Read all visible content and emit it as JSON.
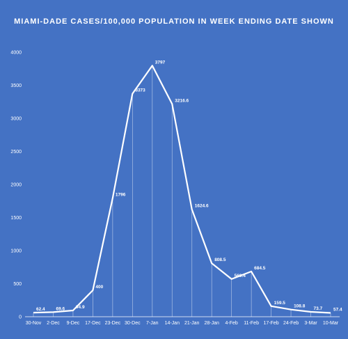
{
  "chart_data": {
    "type": "line",
    "title": "MIAMI-DADE CASES/100,000 POPULATION IN WEEK ENDING DATE SHOWN",
    "xlabel": "",
    "ylabel": "",
    "ylim": [
      0,
      4000
    ],
    "yticks": [
      "0",
      "500",
      "1000",
      "1500",
      "2000",
      "2500",
      "3000",
      "3500",
      "4000"
    ],
    "grid": false,
    "drop_lines": true,
    "categories": [
      "30-Nov",
      "2-Dec",
      "9-Dec",
      "17-Dec",
      "23-Dec",
      "30-Dec",
      "7-Jan",
      "14-Jan",
      "21-Jan",
      "28-Jan",
      "4-Feb",
      "11-Feb",
      "17-Feb",
      "24-Feb",
      "3-Mar",
      "10-Mar"
    ],
    "series": [
      {
        "values": [
          62.4,
          69.6,
          94.9,
          400,
          1796,
          3373,
          3797,
          3216.6,
          1624.6,
          808.5,
          569.4,
          684.5,
          159.5,
          108.8,
          73.7,
          57.4
        ],
        "labels": [
          "62.4",
          "69.6",
          "94.9",
          "400",
          "1796",
          "3373",
          "3797",
          "3216.6",
          "1624.6",
          "808.5",
          "569.4",
          "684.5",
          "159.5",
          "108.8",
          "73.7",
          "57.4"
        ]
      }
    ],
    "colors": {
      "background": "#4472C4",
      "line": "#ffffff",
      "text": "#ffffff"
    }
  }
}
